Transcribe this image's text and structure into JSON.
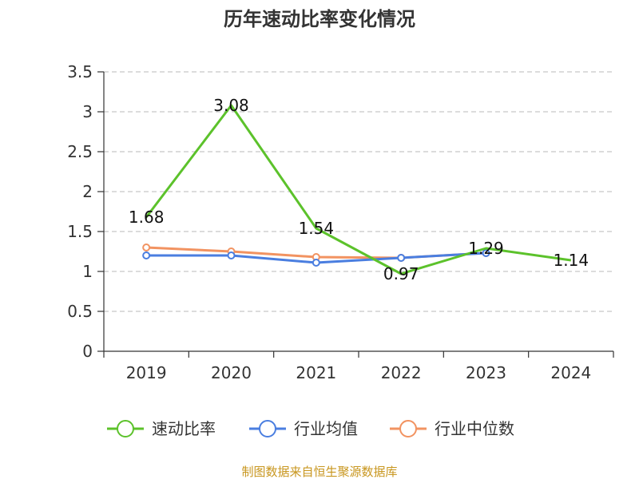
{
  "chart_data": {
    "type": "line",
    "title": "历年速动比率变化情况",
    "categories": [
      "2019",
      "2020",
      "2021",
      "2022",
      "2023",
      "2024"
    ],
    "y_ticks": [
      "0",
      "0.5",
      "1",
      "1.5",
      "2",
      "2.5",
      "3",
      "3.5"
    ],
    "ylim": [
      0,
      3.5
    ],
    "grid": true,
    "legend_position": "bottom",
    "series": [
      {
        "name": "速动比率",
        "color": "#5cc22b",
        "values": [
          1.68,
          3.08,
          1.54,
          0.97,
          1.29,
          1.14
        ],
        "labels": [
          "1.68",
          "3.08",
          "1.54",
          "0.97",
          "1.29",
          "1.14"
        ]
      },
      {
        "name": "行业均值",
        "color": "#4a7ee0",
        "values": [
          1.2,
          1.2,
          1.11,
          1.17,
          1.23,
          null
        ]
      },
      {
        "name": "行业中位数",
        "color": "#f29361",
        "values": [
          1.3,
          1.25,
          1.18,
          1.17,
          1.23,
          null
        ]
      }
    ]
  },
  "source_note": "制图数据来自恒生聚源数据库",
  "source_color": "#c8961e"
}
